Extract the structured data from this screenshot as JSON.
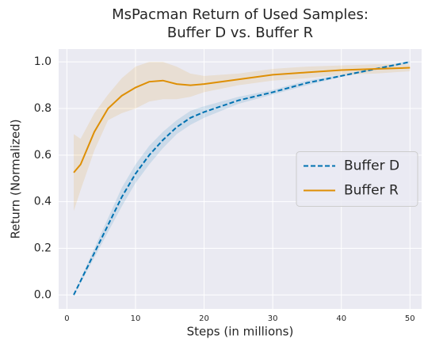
{
  "chart_data": {
    "type": "line",
    "title": [
      "MsPacman Return of Used Samples:",
      "Buffer D vs. Buffer R"
    ],
    "x_label": "Steps (in millions)",
    "y_label": "Return (Normalized)",
    "x": [
      1,
      2,
      4,
      6,
      8,
      10,
      12,
      14,
      16,
      18,
      20,
      25,
      30,
      35,
      40,
      45,
      50
    ],
    "series": [
      {
        "name": "Buffer D",
        "color": "#0072b2",
        "dashed": true,
        "values": [
          0.0,
          0.06,
          0.18,
          0.3,
          0.42,
          0.52,
          0.6,
          0.665,
          0.72,
          0.76,
          0.785,
          0.835,
          0.87,
          0.91,
          0.94,
          0.97,
          1.0
        ],
        "band_lower": [
          0.0,
          0.05,
          0.16,
          0.27,
          0.38,
          0.48,
          0.56,
          0.63,
          0.69,
          0.73,
          0.76,
          0.82,
          0.86,
          0.9,
          0.935,
          0.965,
          0.995
        ],
        "band_upper": [
          0.0,
          0.07,
          0.2,
          0.33,
          0.46,
          0.56,
          0.64,
          0.7,
          0.75,
          0.79,
          0.81,
          0.85,
          0.88,
          0.92,
          0.945,
          0.975,
          1.005
        ]
      },
      {
        "name": "Buffer R",
        "color": "#de8f05",
        "dashed": false,
        "values": [
          0.525,
          0.56,
          0.7,
          0.8,
          0.855,
          0.89,
          0.915,
          0.92,
          0.905,
          0.9,
          0.905,
          0.925,
          0.945,
          0.955,
          0.965,
          0.97,
          0.975
        ],
        "band_lower": [
          0.36,
          0.45,
          0.62,
          0.75,
          0.78,
          0.8,
          0.83,
          0.84,
          0.84,
          0.85,
          0.87,
          0.9,
          0.92,
          0.93,
          0.945,
          0.95,
          0.96
        ],
        "band_upper": [
          0.69,
          0.67,
          0.78,
          0.86,
          0.93,
          0.98,
          1.0,
          1.0,
          0.98,
          0.95,
          0.94,
          0.95,
          0.97,
          0.98,
          0.985,
          0.99,
          0.99
        ]
      }
    ],
    "xlim": [
      -1.2,
      51.7
    ],
    "ylim": [
      -0.06,
      1.055
    ],
    "xticks": [
      0,
      10,
      20,
      30,
      40,
      50
    ],
    "yticks": [
      {
        "value": 0.0,
        "label": "0.0"
      },
      {
        "value": 0.2,
        "label": "0.2"
      },
      {
        "value": 0.4,
        "label": "0.4"
      },
      {
        "value": 0.6,
        "label": "0.6"
      },
      {
        "value": 0.8,
        "label": "0.8"
      },
      {
        "value": 1.0,
        "label": "1.0"
      }
    ],
    "grid": true,
    "legend": "center right"
  }
}
